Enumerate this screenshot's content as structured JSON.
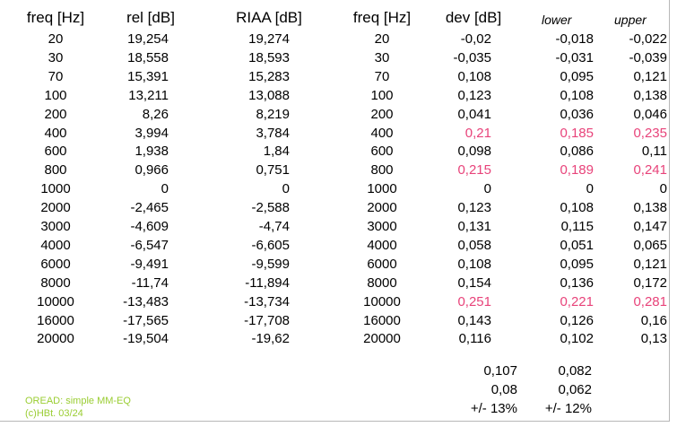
{
  "headers": {
    "freq1": "freq [Hz]",
    "rel": "rel [dB]",
    "riaa": "RIAA [dB]",
    "freq2": "freq [Hz]",
    "dev": "dev [dB]",
    "lower": "lower",
    "upper": "upper"
  },
  "rows": [
    {
      "freq": "20",
      "rel": "19,254",
      "riaa": "19,274",
      "freq2": "20",
      "dev": "-0,02",
      "lower": "-0,018",
      "upper": "-0,022"
    },
    {
      "freq": "30",
      "rel": "18,558",
      "riaa": "18,593",
      "freq2": "30",
      "dev": "-0,035",
      "lower": "-0,031",
      "upper": "-0,039"
    },
    {
      "freq": "70",
      "rel": "15,391",
      "riaa": "15,283",
      "freq2": "70",
      "dev": "0,108",
      "lower": "0,095",
      "upper": "0,121"
    },
    {
      "freq": "100",
      "rel": "13,211",
      "riaa": "13,088",
      "freq2": "100",
      "dev": "0,123",
      "lower": "0,108",
      "upper": "0,138"
    },
    {
      "freq": "200",
      "rel": "8,26",
      "riaa": "8,219",
      "freq2": "200",
      "dev": "0,041",
      "lower": "0,036",
      "upper": "0,046"
    },
    {
      "freq": "400",
      "rel": "3,994",
      "riaa": "3,784",
      "freq2": "400",
      "dev": "0,21",
      "lower": "0,185",
      "upper": "0,235",
      "highlight": true
    },
    {
      "freq": "600",
      "rel": "1,938",
      "riaa": "1,84",
      "freq2": "600",
      "dev": "0,098",
      "lower": "0,086",
      "upper": "0,11"
    },
    {
      "freq": "800",
      "rel": "0,966",
      "riaa": "0,751",
      "freq2": "800",
      "dev": "0,215",
      "lower": "0,189",
      "upper": "0,241",
      "highlight": true
    },
    {
      "freq": "1000",
      "rel": "0",
      "riaa": "0",
      "freq2": "1000",
      "dev": "0",
      "lower": "0",
      "upper": "0"
    },
    {
      "freq": "2000",
      "rel": "-2,465",
      "riaa": "-2,588",
      "freq2": "2000",
      "dev": "0,123",
      "lower": "0,108",
      "upper": "0,138"
    },
    {
      "freq": "3000",
      "rel": "-4,609",
      "riaa": "-4,74",
      "freq2": "3000",
      "dev": "0,131",
      "lower": "0,115",
      "upper": "0,147"
    },
    {
      "freq": "4000",
      "rel": "-6,547",
      "riaa": "-6,605",
      "freq2": "4000",
      "dev": "0,058",
      "lower": "0,051",
      "upper": "0,065"
    },
    {
      "freq": "6000",
      "rel": "-9,491",
      "riaa": "-9,599",
      "freq2": "6000",
      "dev": "0,108",
      "lower": "0,095",
      "upper": "0,121"
    },
    {
      "freq": "8000",
      "rel": "-11,74",
      "riaa": "-11,894",
      "freq2": "8000",
      "dev": "0,154",
      "lower": "0,136",
      "upper": "0,172"
    },
    {
      "freq": "10000",
      "rel": "-13,483",
      "riaa": "-13,734",
      "freq2": "10000",
      "dev": "0,251",
      "lower": "0,221",
      "upper": "0,281",
      "highlight": true
    },
    {
      "freq": "16000",
      "rel": "-17,565",
      "riaa": "-17,708",
      "freq2": "16000",
      "dev": "0,143",
      "lower": "0,126",
      "upper": "0,16"
    },
    {
      "freq": "20000",
      "rel": "-19,504",
      "riaa": "-19,62",
      "freq2": "20000",
      "dev": "0,116",
      "lower": "0,102",
      "upper": "0,13"
    }
  ],
  "summary": [
    {
      "dev": "0,107",
      "lower": "0,082"
    },
    {
      "dev": "0,08",
      "lower": "0,062"
    },
    {
      "dev": "+/- 13%",
      "lower": "+/- 12%"
    }
  ],
  "note": {
    "line1": "OREAD: simple MM-EQ",
    "line2": "(c)HBt. 03/24"
  },
  "colors": {
    "highlight": "#e8437a",
    "note": "#9acd32"
  }
}
